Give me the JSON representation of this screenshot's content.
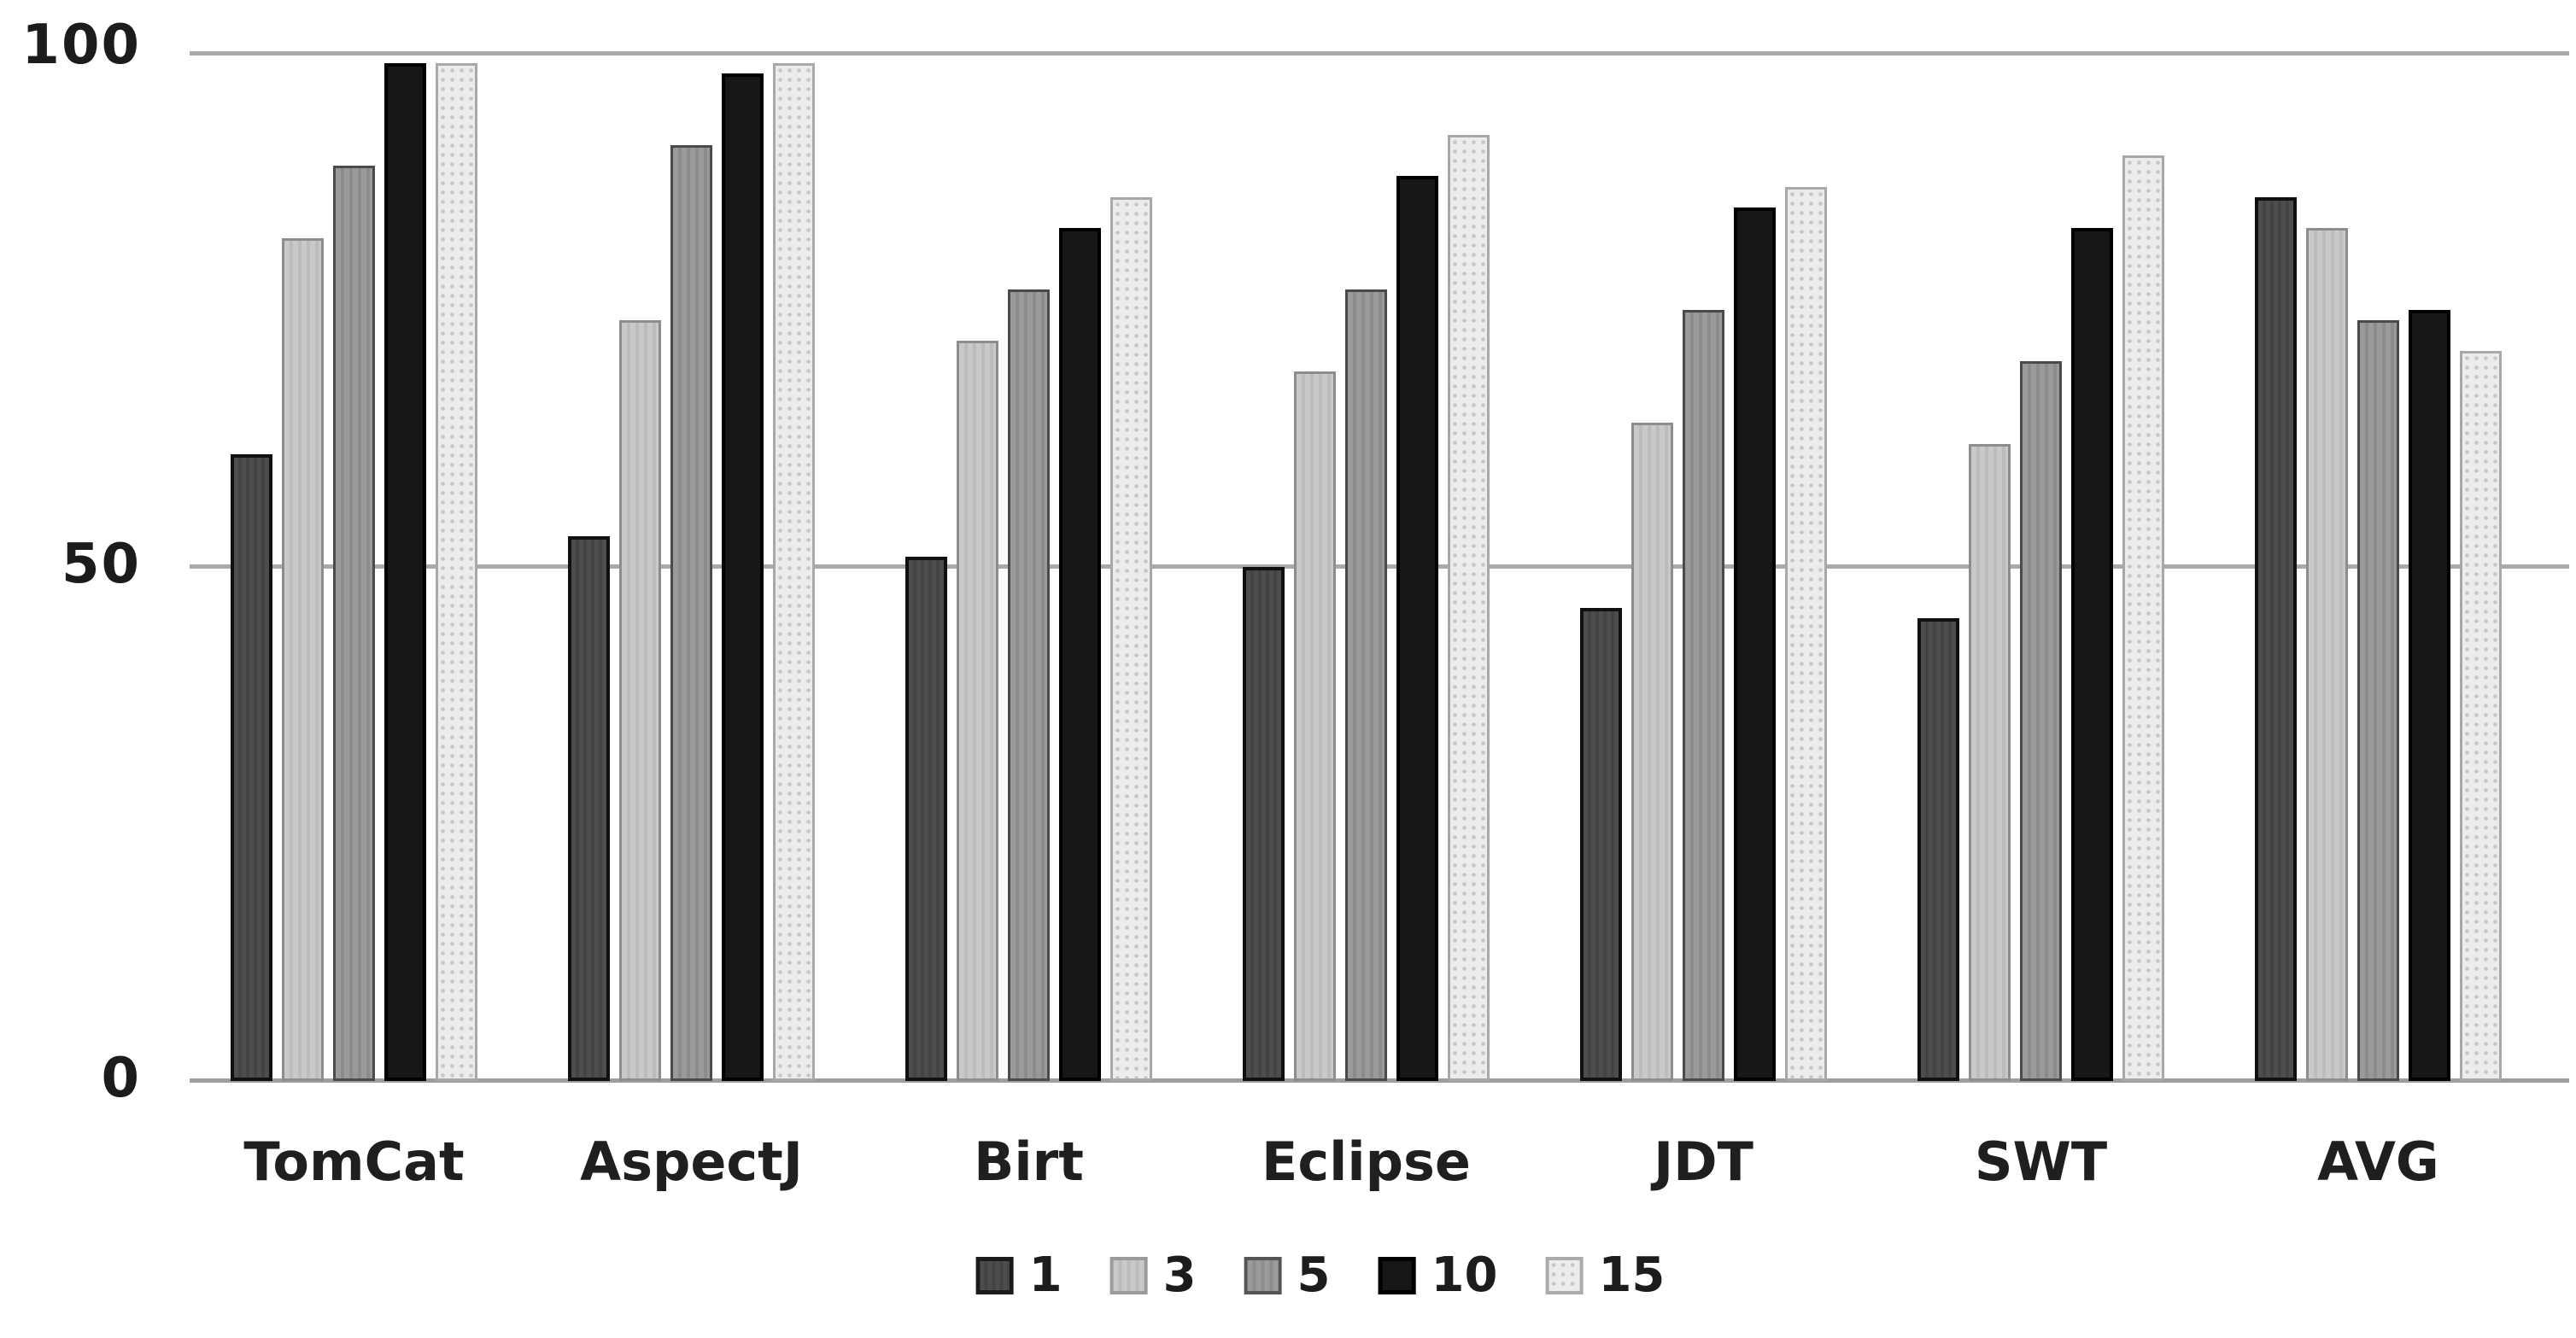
{
  "chart_data": {
    "type": "bar",
    "title": "",
    "xlabel": "",
    "ylabel": "",
    "ylim": [
      0,
      100
    ],
    "yticks": [
      {
        "value": 100,
        "label": "100"
      },
      {
        "value": 50,
        "label": "50"
      },
      {
        "value": 0,
        "label": "0"
      }
    ],
    "grid": "horizontal",
    "legend_position": "bottom-center",
    "categories": [
      "TomCat",
      "AspectJ",
      "Birt",
      "Eclipse",
      "JDT",
      "SWT",
      "AVG"
    ],
    "series": [
      {
        "name": "1",
        "color": "#4d4d4d",
        "values": [
          61,
          53,
          51,
          50,
          46,
          45,
          86
        ]
      },
      {
        "name": "3",
        "color": "#c6c6c6",
        "values": [
          82,
          74,
          72,
          69,
          64,
          62,
          83
        ]
      },
      {
        "name": "5",
        "color": "#949494",
        "values": [
          89,
          91,
          77,
          77,
          75,
          70,
          74
        ]
      },
      {
        "name": "10",
        "color": "#171717",
        "values": [
          99,
          98,
          83,
          88,
          85,
          83,
          75
        ]
      },
      {
        "name": "15",
        "color": "#ececec",
        "values": [
          99,
          99,
          86,
          92,
          87,
          90,
          71
        ]
      }
    ]
  },
  "axis": {
    "tick_100": "100",
    "tick_50": "50",
    "tick_0": "0"
  },
  "legend": {
    "items": [
      "1",
      "3",
      "5",
      "10",
      "15"
    ]
  },
  "colors": {
    "background": "#ffffff",
    "gridline": "#a9a9a9",
    "text": "#1c1c1c"
  }
}
